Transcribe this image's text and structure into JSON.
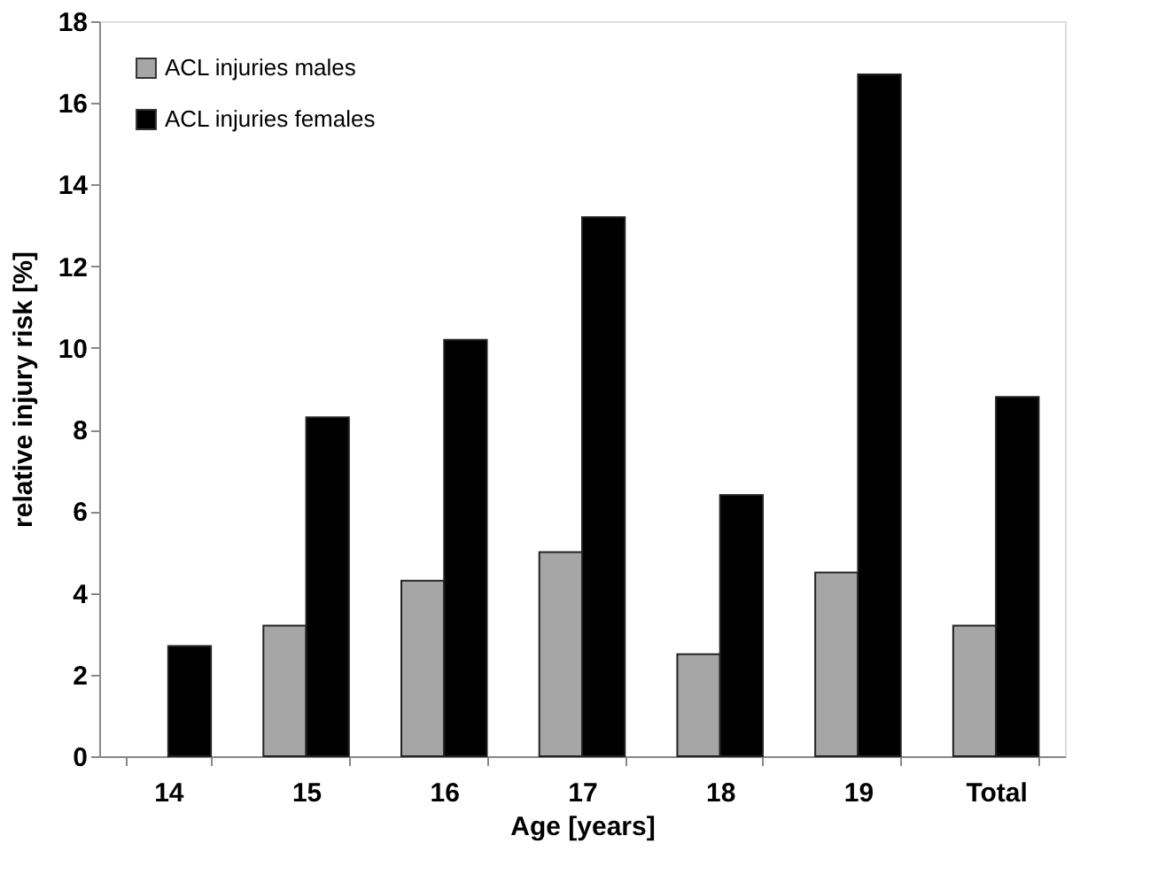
{
  "chart_data": {
    "type": "bar",
    "xlabel": "Age [years]",
    "ylabel": "relative injury risk [%]",
    "categories": [
      "14",
      "15",
      "16",
      "17",
      "18",
      "19",
      "Total"
    ],
    "series": [
      {
        "name": "ACL injuries males",
        "color": "#a6a6a6",
        "values": [
          null,
          3.2,
          4.3,
          5.0,
          2.5,
          4.5,
          3.2
        ]
      },
      {
        "name": "ACL injuries females",
        "color": "#000000",
        "values": [
          2.7,
          8.3,
          10.2,
          13.2,
          6.4,
          16.7,
          8.8
        ]
      }
    ],
    "ylim": [
      0,
      18
    ],
    "yticks": [
      0,
      2,
      4,
      6,
      8,
      10,
      12,
      14,
      16,
      18
    ],
    "grid": false,
    "legend": "top left"
  }
}
